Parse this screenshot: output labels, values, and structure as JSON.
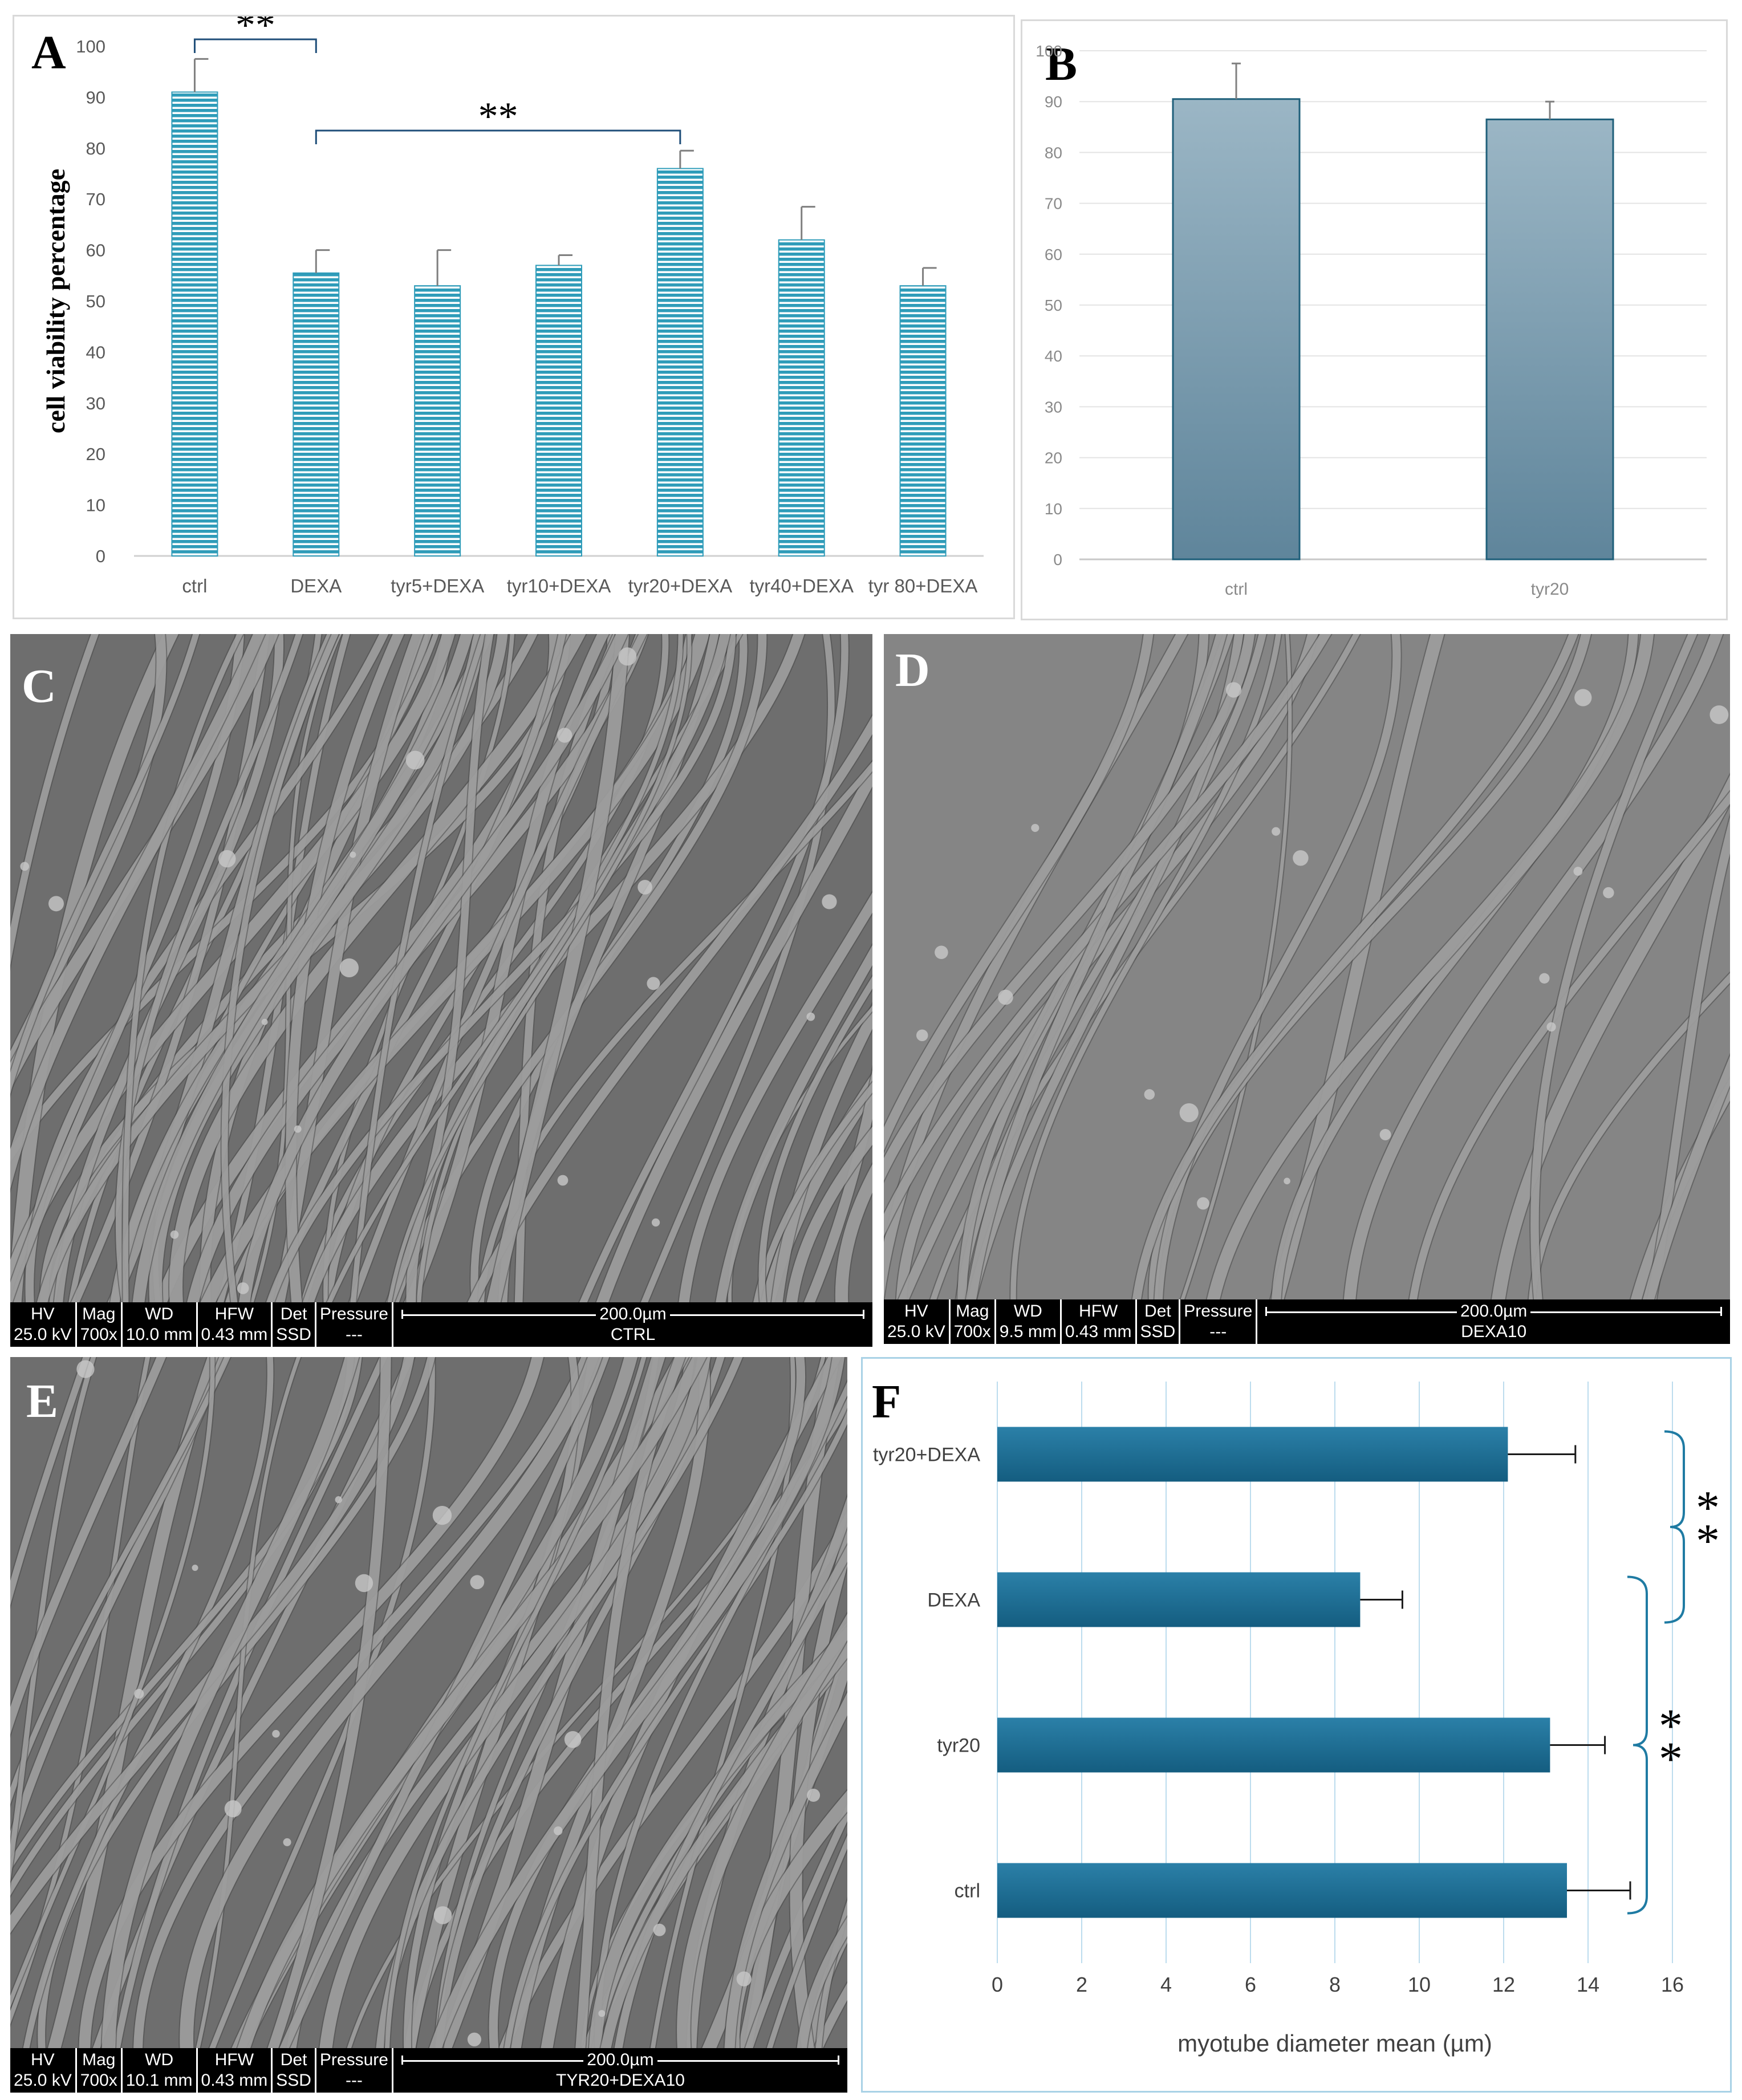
{
  "panels": {
    "A": {
      "label": "A"
    },
    "B": {
      "label": "B"
    },
    "C": {
      "label": "C"
    },
    "D": {
      "label": "D"
    },
    "E": {
      "label": "E"
    },
    "F": {
      "label": "F"
    }
  },
  "chart_data": [
    {
      "id": "A",
      "type": "bar",
      "title": "",
      "ylabel": "cell viability percentage",
      "xlabel": "",
      "categories": [
        "ctrl",
        "DEXA",
        "tyr5+DEXA",
        "tyr10+DEXA",
        "tyr20+DEXA",
        "tyr40+DEXA",
        "tyr 80+DEXA"
      ],
      "values": [
        91,
        55.5,
        53,
        57,
        76,
        62,
        53
      ],
      "errors": [
        6.5,
        4.5,
        7,
        2,
        3.5,
        6.5,
        3.5
      ],
      "ylim": [
        0,
        100
      ],
      "yticks": [
        0,
        10,
        20,
        30,
        40,
        50,
        60,
        70,
        80,
        90,
        100
      ],
      "grid": false,
      "color": "#2f9cb9",
      "significance": [
        {
          "from": "ctrl",
          "to": "DEXA",
          "label": "**"
        },
        {
          "from": "DEXA",
          "to": "tyr20+DEXA",
          "label": "**"
        }
      ]
    },
    {
      "id": "B",
      "type": "bar",
      "title": "",
      "xlabel": "",
      "ylabel": "",
      "categories": [
        "ctrl",
        "tyr20"
      ],
      "values": [
        90.5,
        86.5
      ],
      "errors": [
        7,
        3.5
      ],
      "ylim": [
        0,
        100
      ],
      "yticks": [
        0,
        10,
        20,
        30,
        40,
        50,
        60,
        70,
        80,
        90,
        100
      ],
      "grid": true,
      "color": "#7f9fb2"
    },
    {
      "id": "F",
      "type": "bar",
      "orientation": "horizontal",
      "title": "",
      "xlabel": "myotube diameter mean (µm)",
      "ylabel": "",
      "categories": [
        "tyr20+DEXA",
        "DEXA",
        "tyr20",
        "ctrl"
      ],
      "values": [
        12.1,
        8.6,
        13.1,
        13.5
      ],
      "errors": [
        1.6,
        1.0,
        1.3,
        1.5
      ],
      "xlim": [
        0,
        16
      ],
      "xticks": [
        0,
        2,
        4,
        6,
        8,
        10,
        12,
        14,
        16
      ],
      "grid": true,
      "color": "#1f6e92",
      "significance": [
        {
          "from": "tyr20+DEXA",
          "to": "DEXA",
          "label": "**"
        },
        {
          "from": "DEXA",
          "to": "ctrl",
          "label": "**"
        }
      ]
    }
  ],
  "sem_images": [
    {
      "id": "C",
      "hv": "25.0 kV",
      "mag": "700x",
      "wd": "10.0 mm",
      "hfw": "0.43 mm",
      "det": "SSD",
      "pressure": "---",
      "scale": "200.0µm",
      "name": "CTRL"
    },
    {
      "id": "D",
      "hv": "25.0 kV",
      "mag": "700x",
      "wd": "9.5 mm",
      "hfw": "0.43 mm",
      "det": "SSD",
      "pressure": "---",
      "scale": "200.0µm",
      "name": "DEXA10"
    },
    {
      "id": "E",
      "hv": "25.0 kV",
      "mag": "700x",
      "wd": "10.1 mm",
      "hfw": "0.43 mm",
      "det": "SSD",
      "pressure": "---",
      "scale": "200.0µm",
      "name": "TYR20+DEXA10"
    }
  ],
  "sem_header": {
    "hv": "HV",
    "mag": "Mag",
    "wd": "WD",
    "hfw": "HFW",
    "det": "Det",
    "pressure": "Pressure"
  }
}
